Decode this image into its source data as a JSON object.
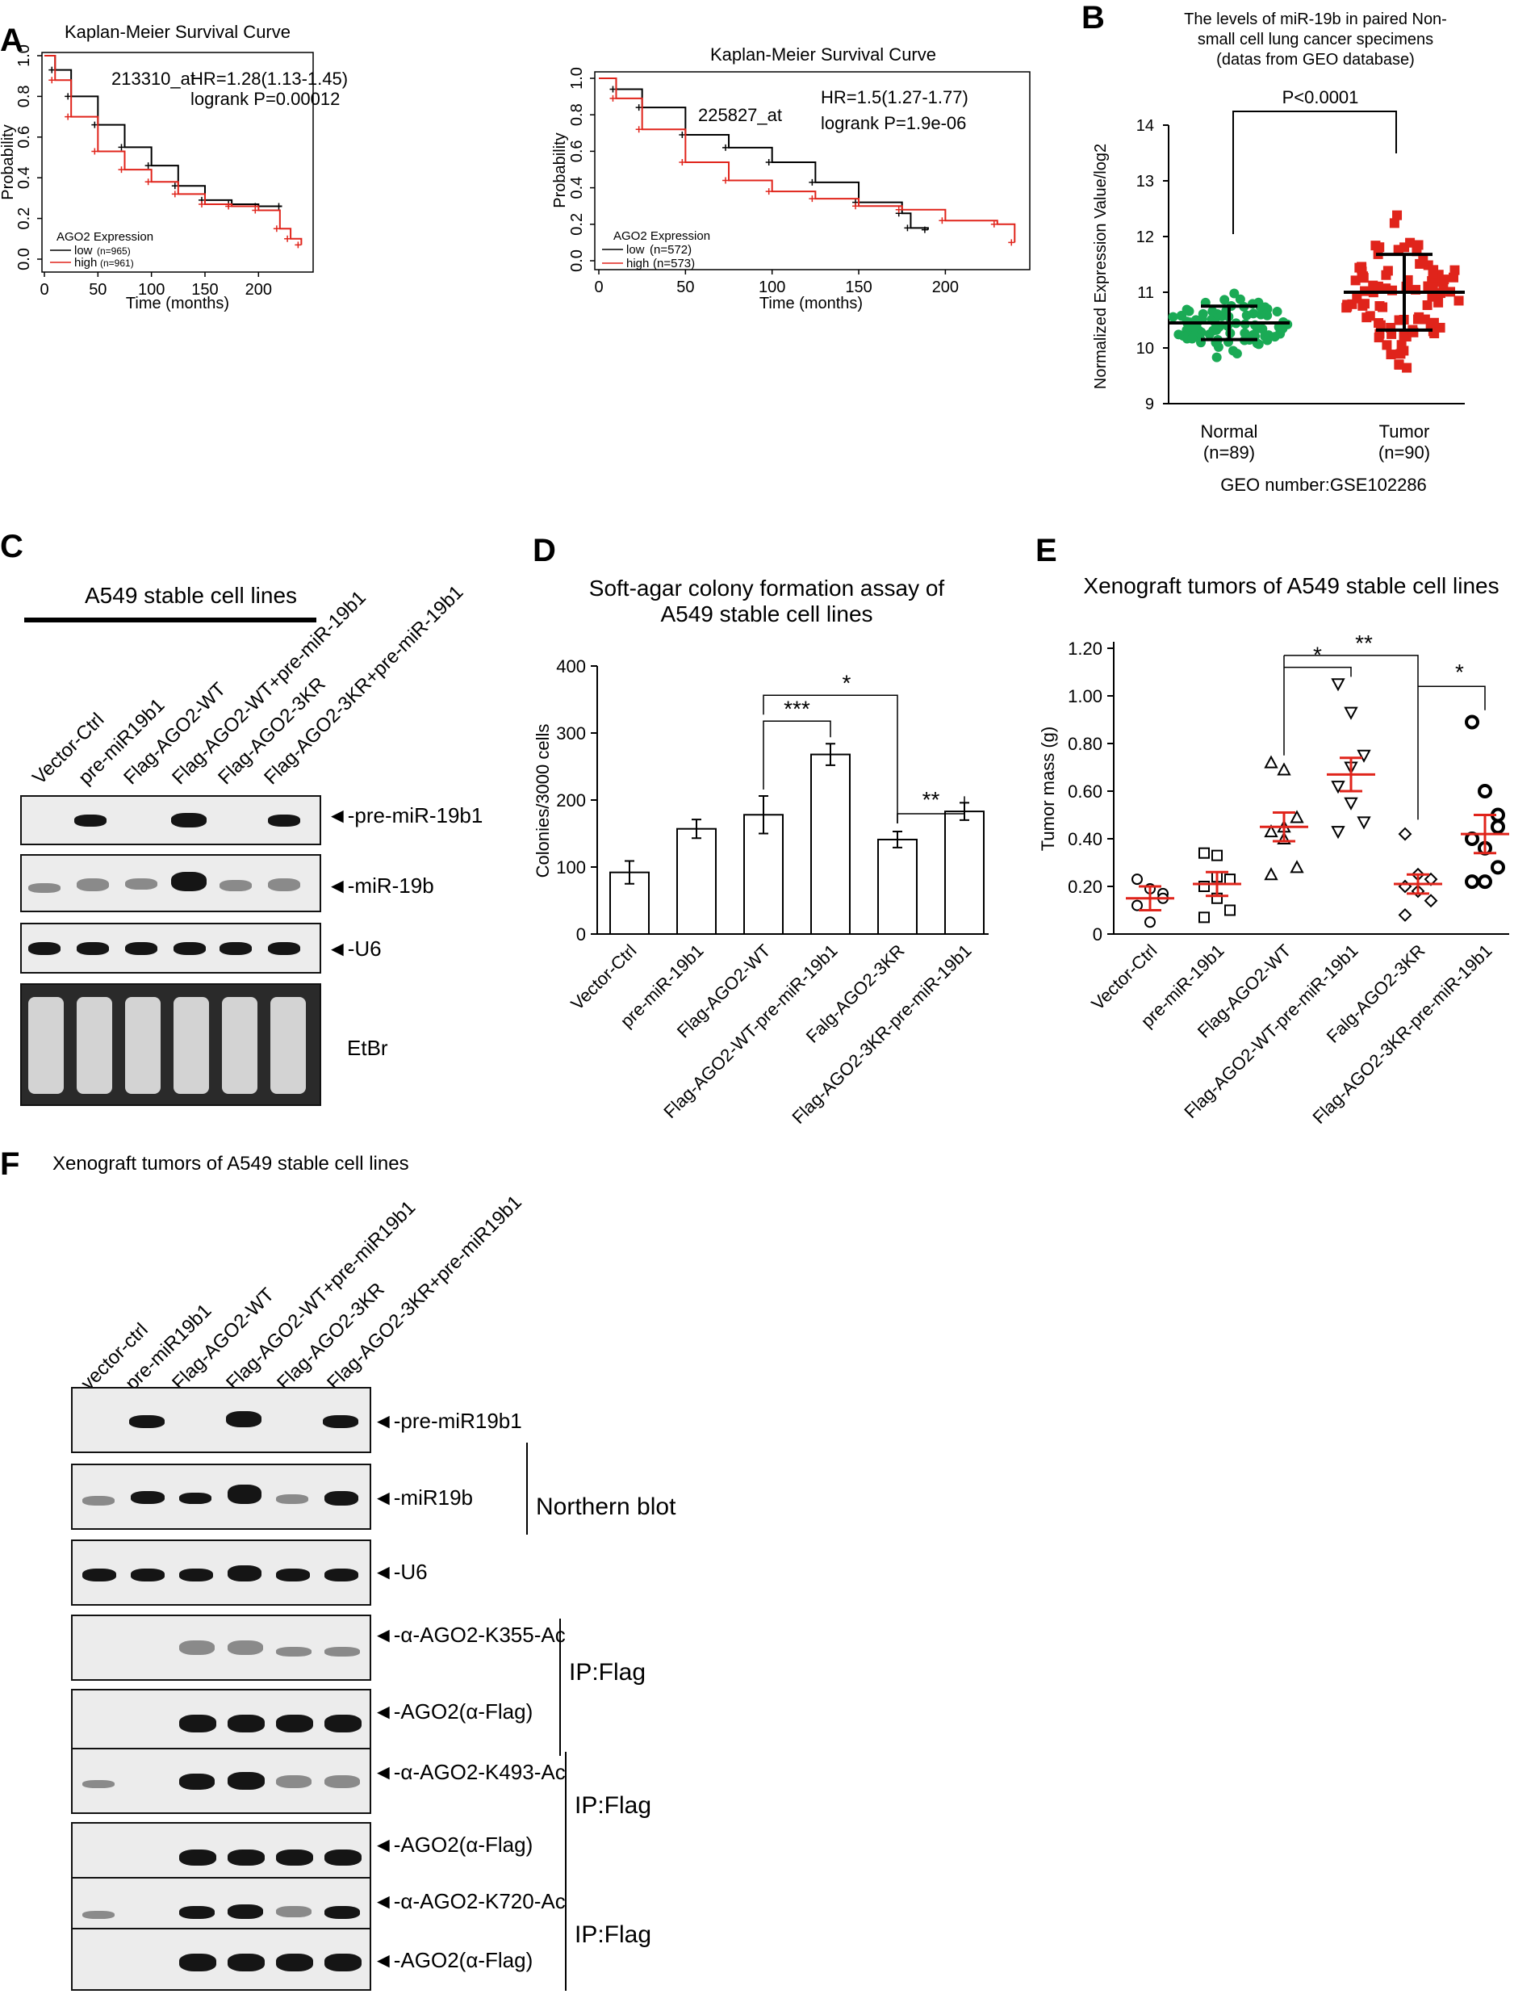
{
  "panels": {
    "A": {
      "letter": "A",
      "left": {
        "title": "Kaplan-Meier Survival Curve",
        "probe": "213310_at",
        "hr": "HR=1.28(1.13-1.45)",
        "logrank": "logrank P=0.00012",
        "legend_title": "AGO2 Expression",
        "legend_low": "low",
        "legend_low_n": "(n=965)",
        "legend_high": "high",
        "legend_high_n": "(n=961)",
        "xlabel": "Time (months)",
        "ylabel": "Probability",
        "xticks": [
          "0",
          "50",
          "100",
          "150",
          "200"
        ],
        "yticks": [
          "0.0",
          "0.2",
          "0.4",
          "0.6",
          "0.8",
          "1.0"
        ]
      },
      "right": {
        "title": "Kaplan-Meier Survival Curve",
        "probe": "225827_at",
        "hr": "HR=1.5(1.27-1.77)",
        "logrank": "logrank P=1.9e-06",
        "legend_title": "AGO2 Expression",
        "legend_low": "low",
        "legend_low_n": "(n=572)",
        "legend_high": "high",
        "legend_high_n": "(n=573)",
        "xlabel": "Time (months)",
        "ylabel": "Probability",
        "xticks": [
          "0",
          "50",
          "100",
          "150",
          "200"
        ],
        "yticks": [
          "0.0",
          "0.2",
          "0.4",
          "0.6",
          "0.8",
          "1.0"
        ]
      }
    },
    "B": {
      "letter": "B",
      "title_l1": "The levels of miR-19b in paired Non-",
      "title_l2": "small cell  lung cancer specimens",
      "title_l3": "(datas from GEO database)",
      "pvalue": "P<0.0001",
      "ylabel": "Normalized Expression Value/log2",
      "yticks": [
        "9",
        "10",
        "11",
        "12",
        "13",
        "14"
      ],
      "cat1": "Normal",
      "cat1_n": "(n=89)",
      "cat2": "Tumor",
      "cat2_n": "(n=90)",
      "geo": "GEO number:GSE102286"
    },
    "C": {
      "letter": "C",
      "header": "A549 stable cell lines",
      "lanes": [
        "Vector-Ctrl",
        "pre-miR19b1",
        "Flag-AGO2-WT",
        "Flag-AGO2-WT+pre-miR-19b1",
        "Flag-AGO2-3KR",
        "Flag-AGO2-3KR+pre-miR-19b1"
      ],
      "bands": [
        "pre-miR-19b1",
        "miR-19b",
        "U6",
        "EtBr"
      ]
    },
    "D": {
      "letter": "D",
      "title_l1": "Soft-agar colony formation assay of",
      "title_l2": "A549 stable cell lines",
      "ylabel": "Colonies/3000 cells",
      "sig_a": "***",
      "sig_b": "*",
      "sig_c": "**"
    },
    "E": {
      "letter": "E",
      "title": "Xenograft tumors of A549 stable cell lines",
      "ylabel": "Tumor mass (g)",
      "sig_a": "*",
      "sig_b": "**",
      "sig_c": "*"
    },
    "F": {
      "letter": "F",
      "title": "Xenograft tumors of A549 stable cell lines",
      "lanes": [
        "vector-ctrl",
        "pre-miR19b1",
        "Flag-AGO2-WT",
        "Flag-AGO2-WT+pre-miR19b1",
        "Flag-AGO2-3KR",
        "Flag-AGO2-3KR+pre-miR19b1"
      ],
      "bands": [
        "pre-miR19b1",
        "miR19b",
        "U6",
        "α-AGO2-K355-Ac",
        "AGO2(α-Flag)",
        "α-AGO2-K493-Ac",
        "AGO2(α-Flag)",
        "α-AGO2-K720-Ac",
        "AGO2(α-Flag)"
      ],
      "northern": "Northern blot",
      "ip1": "IP:Flag",
      "ip2": "IP:Flag",
      "ip3": "IP:Flag"
    }
  },
  "chart_data": [
    {
      "type": "bar",
      "title": "Soft-agar colony formation assay of A549 stable cell lines",
      "ylabel": "Colonies/3000 cells",
      "categories": [
        "Vector-Ctrl",
        "pre-miR-19b1",
        "Flag-AGO2-WT",
        "Flag-AGO2-WT-pre-miR-19b1",
        "Falg-AGO2-3KR",
        "Flag-AGO2-3KR-pre-miR-19b1"
      ],
      "values": [
        92,
        157,
        178,
        268,
        141,
        183
      ],
      "errors": [
        17,
        14,
        28,
        16,
        12,
        13
      ],
      "ylim": [
        0,
        400
      ],
      "yticks": [
        0,
        100,
        200,
        300,
        400
      ]
    },
    {
      "type": "scatter",
      "title": "Xenograft tumors of A549 stable cell lines",
      "ylabel": "Tumor mass (g)",
      "categories": [
        "Vector-Ctrl",
        "pre-miR-19b1",
        "Flag-AGO2-WT",
        "Flag-AGO2-WT-pre-miR-19b1",
        "Falg-AGO2-3KR",
        "Flag-AGO2-3KR-pre-miR-19b1"
      ],
      "means": [
        0.15,
        0.21,
        0.45,
        0.67,
        0.21,
        0.42
      ],
      "sem": [
        0.05,
        0.05,
        0.06,
        0.07,
        0.04,
        0.08
      ],
      "points": [
        [
          0.23,
          0.19,
          0.17,
          0.12,
          0.05,
          0.15
        ],
        [
          0.34,
          0.33,
          0.23,
          0.2,
          0.15,
          0.1,
          0.07,
          0.24
        ],
        [
          0.72,
          0.69,
          0.49,
          0.43,
          0.4,
          0.28,
          0.25,
          0.45
        ],
        [
          1.05,
          0.93,
          0.75,
          0.62,
          0.55,
          0.47,
          0.43,
          0.7
        ],
        [
          0.42,
          0.25,
          0.23,
          0.2,
          0.18,
          0.14,
          0.08
        ],
        [
          0.89,
          0.6,
          0.5,
          0.4,
          0.36,
          0.28,
          0.22,
          0.22,
          0.45
        ]
      ],
      "ylim": [
        0,
        1.2
      ],
      "yticks": [
        "0",
        "0.20",
        "0.40",
        "0.60",
        "0.80",
        "1.00",
        "1.20"
      ]
    },
    {
      "type": "scatter",
      "title": "The levels of miR-19b in paired Non-small cell lung cancer specimens",
      "ylabel": "Normalized Expression Value/log2",
      "categories": [
        "Normal",
        "Tumor"
      ],
      "means": [
        10.45,
        11.0
      ],
      "sd": [
        0.3,
        0.68
      ],
      "ylim": [
        9,
        14
      ]
    },
    {
      "type": "line",
      "title": "Kaplan-Meier Survival Curve (213310_at)",
      "xlabel": "Time (months)",
      "ylabel": "Probability",
      "xlim": [
        0,
        245
      ],
      "ylim": [
        0,
        1
      ],
      "series": [
        {
          "name": "low",
          "x": [
            0,
            10,
            25,
            50,
            75,
            100,
            125,
            150,
            175,
            200,
            222
          ],
          "y": [
            1.0,
            0.93,
            0.8,
            0.66,
            0.55,
            0.46,
            0.36,
            0.29,
            0.27,
            0.26,
            0.26
          ]
        },
        {
          "name": "high",
          "x": [
            0,
            10,
            25,
            50,
            75,
            100,
            125,
            150,
            175,
            200,
            220,
            230,
            240
          ],
          "y": [
            1.0,
            0.88,
            0.7,
            0.53,
            0.44,
            0.38,
            0.32,
            0.27,
            0.26,
            0.24,
            0.15,
            0.1,
            0.07
          ]
        }
      ]
    },
    {
      "type": "line",
      "title": "Kaplan-Meier Survival Curve (225827_at)",
      "xlabel": "Time (months)",
      "ylabel": "Probability",
      "xlim": [
        0,
        245
      ],
      "ylim": [
        0,
        1
      ],
      "series": [
        {
          "name": "low",
          "x": [
            0,
            10,
            25,
            50,
            75,
            100,
            125,
            150,
            175,
            180,
            190
          ],
          "y": [
            1.0,
            0.94,
            0.84,
            0.69,
            0.62,
            0.54,
            0.43,
            0.32,
            0.26,
            0.18,
            0.17
          ]
        },
        {
          "name": "high",
          "x": [
            0,
            10,
            25,
            50,
            75,
            100,
            125,
            150,
            175,
            200,
            230,
            240
          ],
          "y": [
            1.0,
            0.89,
            0.72,
            0.54,
            0.44,
            0.38,
            0.34,
            0.3,
            0.28,
            0.22,
            0.2,
            0.1
          ]
        }
      ]
    }
  ]
}
